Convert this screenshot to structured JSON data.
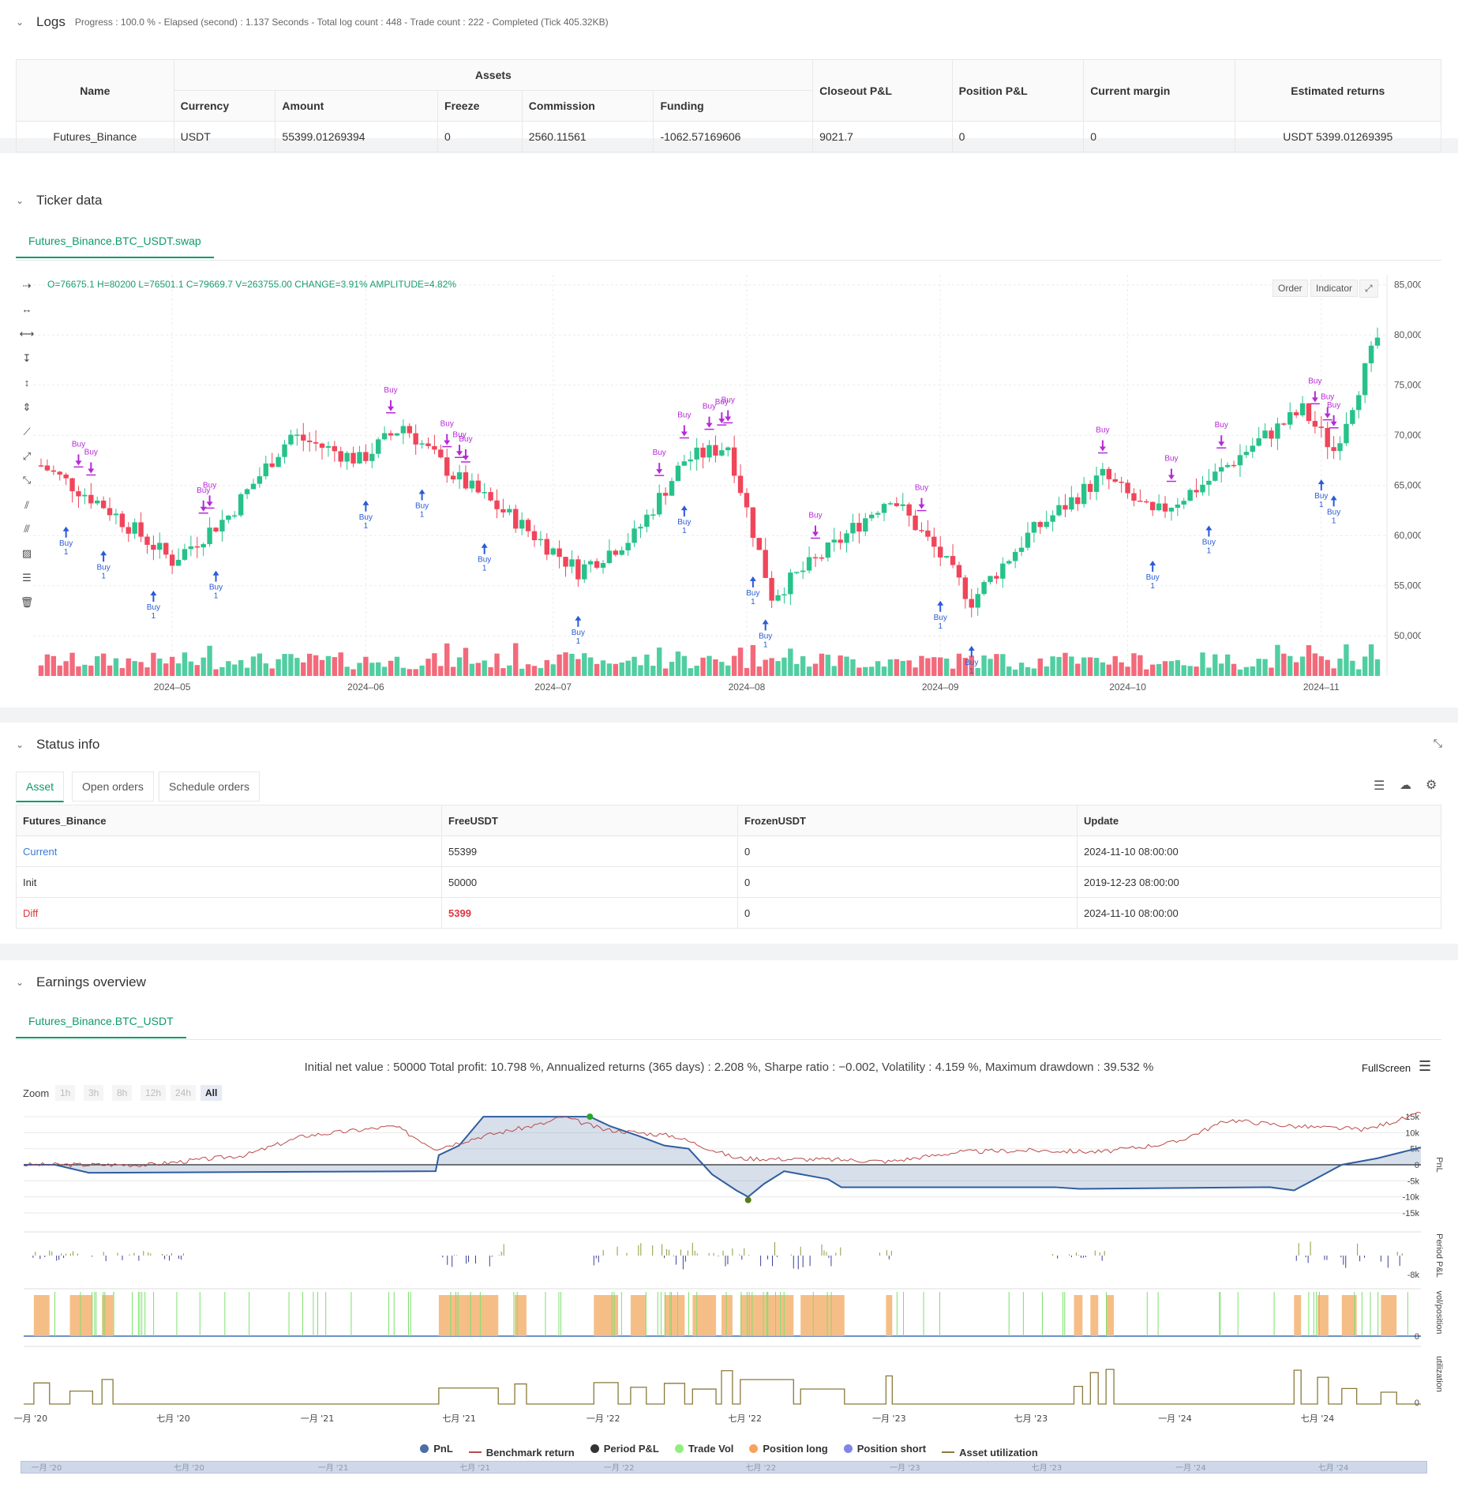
{
  "logs": {
    "title": "Logs",
    "summary": "Progress : 100.0 % - Elapsed (second) : 1.137  Seconds - Total log count : 448 - Trade count : 222 - Completed (Tick 405.32KB)",
    "table": {
      "h_name": "Name",
      "h_assets": "Assets",
      "h_currency": "Currency",
      "h_amount": "Amount",
      "h_freeze": "Freeze",
      "h_commission": "Commission",
      "h_funding": "Funding",
      "h_closeout": "Closeout P&L",
      "h_position": "Position P&L",
      "h_margin": "Current margin",
      "h_estimated": "Estimated returns",
      "row": {
        "name": "Futures_Binance",
        "currency": "USDT",
        "amount": "55399.01269394",
        "freeze": "0",
        "commission": "2560.11561",
        "funding": "-1062.57169606",
        "closeout": "9021.7",
        "position": "0",
        "margin": "0",
        "estimated": "USDT 5399.01269395"
      }
    }
  },
  "ticker": {
    "title": "Ticker data",
    "tab": "Futures_Binance.BTC_USDT.swap",
    "ohlc": "O=76675.1 H=80200 L=76501.1 C=79669.7 V=263755.00 CHANGE=3.91% AMPLITUDE=4.82%",
    "btn_order": "Order",
    "btn_indicator": "Indicator",
    "price_ticks": [
      "85,000.00",
      "80,000.00",
      "75,000.00",
      "70,000.00",
      "65,000.00",
      "60,000.00",
      "55,000.00",
      "50,000.00"
    ],
    "date_ticks": [
      "2024–05",
      "2024–06",
      "2024–07",
      "2024–08",
      "2024–09",
      "2024–10",
      "2024–11"
    ],
    "signal_buy": "Buy",
    "signal_qty": "1"
  },
  "chart_data": [
    {
      "type": "candlestick",
      "title": "",
      "x_range": [
        "2024-04-10",
        "2024-11-10"
      ],
      "ylim": [
        46000,
        86000
      ],
      "y_ticks": [
        50000,
        55000,
        60000,
        65000,
        70000,
        75000,
        80000,
        85000
      ],
      "approx_close_path": [
        [
          "2024-04-10",
          67000
        ],
        [
          "2024-04-20",
          63000
        ],
        [
          "2024-05-01",
          57500
        ],
        [
          "2024-05-10",
          62000
        ],
        [
          "2024-05-20",
          70000
        ],
        [
          "2024-05-31",
          67500
        ],
        [
          "2024-06-07",
          71000
        ],
        [
          "2024-06-15",
          66000
        ],
        [
          "2024-06-25",
          61500
        ],
        [
          "2024-07-05",
          56500
        ],
        [
          "2024-07-14",
          60000
        ],
        [
          "2024-07-22",
          67500
        ],
        [
          "2024-07-29",
          69000
        ],
        [
          "2024-08-05",
          54000
        ],
        [
          "2024-08-15",
          59000
        ],
        [
          "2024-08-24",
          64000
        ],
        [
          "2024-09-01",
          58000
        ],
        [
          "2024-09-06",
          53500
        ],
        [
          "2024-09-15",
          60000
        ],
        [
          "2024-09-27",
          66000
        ],
        [
          "2024-10-05",
          62000
        ],
        [
          "2024-10-14",
          65500
        ],
        [
          "2024-10-21",
          69000
        ],
        [
          "2024-10-29",
          72500
        ],
        [
          "2024-11-03",
          68500
        ],
        [
          "2024-11-10",
          79669.7
        ]
      ]
    },
    {
      "type": "line",
      "title": "Initial net value : 50000 Total profit: 10.798 %, Annualized returns (365 days) : 2.208 %, Sharpe ratio : -0.002, Volatility : 4.159 %, Maximum drawdown : 39.532 %",
      "x_ticks": [
        "一月 '20",
        "七月 '20",
        "一月 '21",
        "七月 '21",
        "一月 '22",
        "七月 '22",
        "一月 '23",
        "七月 '23",
        "一月 '24",
        "七月 '24"
      ],
      "y_ticks": [
        "15k",
        "10k",
        "5k",
        "0",
        "-5k",
        "-10k",
        "-15k"
      ],
      "ylim": [
        -16000,
        16000
      ],
      "series": [
        {
          "name": "PnL",
          "points": [
            [
              "2019-12-23",
              0
            ],
            [
              "2020-02-01",
              0
            ],
            [
              "2020-03-15",
              -2500
            ],
            [
              "2021-06-01",
              -2000
            ],
            [
              "2021-06-05",
              3000
            ],
            [
              "2021-07-01",
              6000
            ],
            [
              "2021-08-01",
              15000
            ],
            [
              "2021-12-15",
              15000
            ],
            [
              "2022-01-10",
              12000
            ],
            [
              "2022-02-15",
              9000
            ],
            [
              "2022-03-20",
              6000
            ],
            [
              "2022-04-20",
              5000
            ],
            [
              "2022-05-20",
              -3000
            ],
            [
              "2022-06-20",
              -8000
            ],
            [
              "2022-07-05",
              -10000
            ],
            [
              "2022-07-25",
              -6000
            ],
            [
              "2022-08-20",
              -2000
            ],
            [
              "2022-10-15",
              -4500
            ],
            [
              "2022-11-01",
              -7000
            ],
            [
              "2023-08-01",
              -7000
            ],
            [
              "2023-09-01",
              -7500
            ],
            [
              "2024-05-01",
              -7000
            ],
            [
              "2024-06-01",
              -8000
            ],
            [
              "2024-08-01",
              0
            ],
            [
              "2024-09-15",
              2000
            ],
            [
              "2024-11-10",
              5400
            ]
          ]
        },
        {
          "name": "Benchmark return",
          "points": [
            [
              "2019-12-23",
              0
            ],
            [
              "2020-06-01",
              0
            ],
            [
              "2020-10-01",
              3000
            ],
            [
              "2020-12-15",
              9000
            ],
            [
              "2021-04-10",
              12000
            ],
            [
              "2021-06-01",
              5000
            ],
            [
              "2021-08-01",
              9000
            ],
            [
              "2021-10-20",
              13000
            ],
            [
              "2021-11-10",
              15000
            ],
            [
              "2022-01-01",
              11000
            ],
            [
              "2022-04-01",
              9000
            ],
            [
              "2022-06-20",
              2000
            ],
            [
              "2022-11-10",
              1500
            ],
            [
              "2023-01-01",
              1000
            ],
            [
              "2023-04-01",
              4000
            ],
            [
              "2023-07-01",
              4500
            ],
            [
              "2023-10-01",
              4000
            ],
            [
              "2024-01-01",
              7000
            ],
            [
              "2024-03-10",
              14000
            ],
            [
              "2024-06-01",
              12000
            ],
            [
              "2024-09-01",
              11000
            ],
            [
              "2024-11-10",
              16000
            ]
          ]
        }
      ],
      "legend": [
        "PnL",
        "Benchmark return",
        "Period P&L",
        "Trade Vol",
        "Position long",
        "Position short",
        "Asset utilization"
      ],
      "legend_position": "bottom"
    }
  ],
  "status": {
    "title": "Status info",
    "tabs": [
      "Asset",
      "Open orders",
      "Schedule orders"
    ],
    "headers": [
      "Futures_Binance",
      "FreeUSDT",
      "FrozenUSDT",
      "Update"
    ],
    "rows": [
      {
        "label": "Current",
        "free": "55399",
        "frozen": "0",
        "update": "2024-11-10 08:00:00"
      },
      {
        "label": "Init",
        "free": "50000",
        "frozen": "0",
        "update": "2019-12-23 08:00:00"
      },
      {
        "label": "Diff",
        "free": "5399",
        "frozen": "0",
        "update": "2024-11-10 08:00:00"
      }
    ]
  },
  "earnings": {
    "title": "Earnings overview",
    "tab": "Futures_Binance.BTC_USDT",
    "summary": "Initial net value : 50000 Total profit: 10.798 %, Annualized returns (365 days) : 2.208 %, Sharpe ratio : −0.002, Volatility : 4.159 %, Maximum drawdown : 39.532 %",
    "fullscreen": "FullScreen",
    "zoom_label": "Zoom",
    "zoom_options": [
      "1h",
      "3h",
      "8h",
      "12h",
      "24h",
      "All"
    ],
    "y_ticks_pnl": [
      "15k",
      "10k",
      "5k",
      "0",
      "-5k",
      "-10k",
      "-15k"
    ],
    "y_tick_period": "-8k",
    "y_tick_zero": "0",
    "axis_labels": [
      "PnL",
      "Period P&L",
      "vol/position",
      "utilization"
    ],
    "x_ticks": [
      "一月 '20",
      "七月 '20",
      "一月 '21",
      "七月 '21",
      "一月 '22",
      "七月 '22",
      "一月 '23",
      "七月 '23",
      "一月 '24",
      "七月 '24"
    ],
    "legend": [
      {
        "label": "PnL",
        "color": "#4a6fa5",
        "kind": "dot"
      },
      {
        "label": "Benchmark return",
        "color": "#b94a48",
        "kind": "line"
      },
      {
        "label": "Period P&L",
        "color": "#333333",
        "kind": "dot"
      },
      {
        "label": "Trade Vol",
        "color": "#90ee7e",
        "kind": "dot"
      },
      {
        "label": "Position long",
        "color": "#f7a35c",
        "kind": "dot"
      },
      {
        "label": "Position short",
        "color": "#8085e9",
        "kind": "dot"
      },
      {
        "label": "Asset utilization",
        "color": "#8b7a3a",
        "kind": "line"
      }
    ]
  },
  "colors": {
    "accent": "#0c9a6d",
    "up": "#26c28a",
    "down": "#f0455a",
    "buy_marker": "#2a5bd7",
    "sell_marker": "#b62ad7",
    "pnl": "#2f5d9e",
    "benchmark": "#b94a48"
  }
}
